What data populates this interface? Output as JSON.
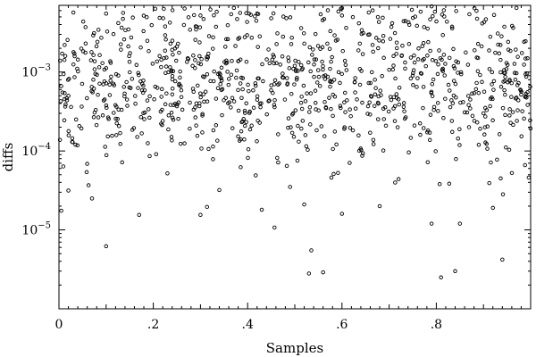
{
  "chart_data": {
    "type": "scatter",
    "title": "",
    "xlabel": "Samples",
    "ylabel": "diffs",
    "x_scale": "linear",
    "y_scale": "log",
    "xlim": [
      0,
      1
    ],
    "ylim": [
      1e-06,
      0.007
    ],
    "x_ticks": [
      0,
      0.2,
      0.4,
      0.6,
      0.8
    ],
    "x_tick_labels": [
      "0",
      ".2",
      ".4",
      ".6",
      ".8"
    ],
    "y_ticks": [
      1e-05,
      0.0001,
      0.001
    ],
    "y_tick_labels": [
      "10^-5",
      "10^-4",
      "10^-3"
    ],
    "y_tick_base": "10",
    "y_tick_exponents": [
      "−5",
      "−4",
      "−3"
    ],
    "grid": false,
    "marker": "hollow-circle",
    "marker_color": "#000000",
    "point_count": 1000,
    "distribution_note": "dense band between 1e-4 and 5e-3 across all x; sparser tail down to ~2.5e-6",
    "sample_points": [
      [
        0.005,
        1.75e-05
      ],
      [
        0.02,
        3.15e-05
      ],
      [
        0.035,
        0.00012
      ],
      [
        0.07,
        2.5e-05
      ],
      [
        0.1,
        6.2e-06
      ],
      [
        0.17,
        1.55e-05
      ],
      [
        0.23,
        5.2e-05
      ],
      [
        0.3,
        1.55e-05
      ],
      [
        0.34,
        3.2e-05
      ],
      [
        0.43,
        1.8e-05
      ],
      [
        0.49,
        3.5e-05
      ],
      [
        0.52,
        2.1e-05
      ],
      [
        0.535,
        5.5e-06
      ],
      [
        0.53,
        2.8e-06
      ],
      [
        0.56,
        2.9e-06
      ],
      [
        0.6,
        1.6e-05
      ],
      [
        0.68,
        2e-05
      ],
      [
        0.72,
        4.4e-05
      ],
      [
        0.79,
        1.2e-05
      ],
      [
        0.81,
        2.5e-06
      ],
      [
        0.84,
        3e-06
      ],
      [
        0.85,
        1.2e-05
      ],
      [
        0.92,
        1.9e-05
      ],
      [
        0.94,
        4.2e-06
      ],
      [
        0.1,
        0.0055
      ],
      [
        0.3,
        0.0052
      ],
      [
        0.45,
        0.0048
      ],
      [
        0.6,
        0.0052
      ],
      [
        0.79,
        0.0068
      ],
      [
        0.97,
        0.0065
      ],
      [
        0.25,
        0.0021
      ],
      [
        0.5,
        0.0012
      ],
      [
        0.75,
        0.0009
      ],
      [
        0.9,
        0.0003
      ]
    ]
  }
}
